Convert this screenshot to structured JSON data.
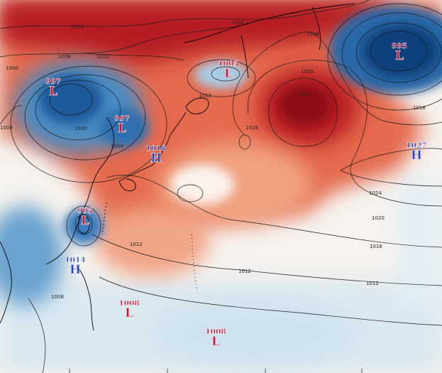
{
  "colors": {
    "low_marker": "#c8102e",
    "high_marker": "#1f3fbf",
    "warm_deep": "#9e0c1a",
    "warm": "#d93a2a",
    "warm_light": "#f4a582",
    "neutral": "#fbeee6",
    "cool_light": "#cfe3ef",
    "cool": "#4f93c8",
    "cool_deep": "#134c8f"
  },
  "pressure_centers": [
    {
      "id": "low-1",
      "kind": "L",
      "value": "997",
      "color_key": "low_marker"
    },
    {
      "id": "low-2",
      "kind": "L",
      "value": "997",
      "color_key": "low_marker"
    },
    {
      "id": "low-3",
      "kind": "L",
      "value": "1005",
      "color_key": "low_marker"
    },
    {
      "id": "low-4",
      "kind": "L",
      "value": "995",
      "color_key": "low_marker"
    },
    {
      "id": "low-5",
      "kind": "L",
      "value": "995",
      "color_key": "low_marker"
    },
    {
      "id": "high-1",
      "kind": "H",
      "value": "1018",
      "color_key": "high_marker"
    },
    {
      "id": "high-2",
      "kind": "H",
      "value": "1027",
      "color_key": "high_marker"
    },
    {
      "id": "high-3",
      "kind": "H",
      "value": "1014",
      "color_key": "high_marker"
    },
    {
      "id": "low-6",
      "kind": "L",
      "value": "1008",
      "color_key": "low_marker"
    },
    {
      "id": "low-7",
      "kind": "L",
      "value": "1008",
      "color_key": "low_marker"
    }
  ],
  "isobar_labels": [
    "1016",
    "1012",
    "1008",
    "1016",
    "1012",
    "1016",
    "1000",
    "1004",
    "1020",
    "1024",
    "1016",
    "1016",
    "1024",
    "1020",
    "1016",
    "1012",
    "1012",
    "1012",
    "1008",
    "1008",
    "1000"
  ]
}
